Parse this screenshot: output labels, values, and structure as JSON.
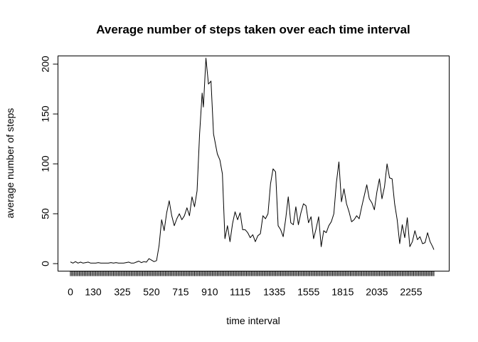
{
  "chart_data": {
    "type": "line",
    "title": "Average number of steps taken over each time interval",
    "xlabel": "time interval",
    "ylabel": "average number of steps",
    "x_tick_labels": [
      "0",
      "130",
      "325",
      "520",
      "715",
      "910",
      "1115",
      "1335",
      "1555",
      "1815",
      "2035",
      "2255"
    ],
    "x_tick_positions": [
      0,
      18,
      41,
      64,
      87,
      110,
      134,
      161,
      188,
      215,
      242,
      269
    ],
    "x_minor_ticks": "every interval index (288 intervals)",
    "xlim": [
      0,
      287
    ],
    "y_ticks": [
      0,
      50,
      100,
      150,
      200
    ],
    "ylim": [
      -8,
      214
    ],
    "grid": false,
    "legend": "none",
    "series": [
      {
        "x": [
          0,
          2,
          4,
          6,
          8,
          10,
          12,
          14,
          16,
          18,
          20,
          22,
          24,
          26,
          28,
          30,
          32,
          34,
          36,
          38,
          40,
          42,
          44,
          46,
          48,
          50,
          52,
          54,
          56,
          58,
          60,
          62,
          64,
          66,
          68,
          70,
          72,
          74,
          76,
          78,
          80,
          82,
          84,
          86,
          88,
          90,
          92,
          94,
          96,
          98,
          100,
          102,
          104,
          105,
          107,
          109,
          111,
          113,
          116,
          118,
          120,
          122,
          124,
          126,
          128,
          130,
          132,
          134,
          136,
          138,
          140,
          142,
          144,
          146,
          148,
          150,
          152,
          154,
          156,
          158,
          160,
          162,
          164,
          166,
          168,
          170,
          172,
          174,
          176,
          178,
          180,
          182,
          184,
          186,
          188,
          190,
          192,
          194,
          196,
          198,
          200,
          202,
          204,
          206,
          208,
          210,
          212,
          214,
          216,
          218,
          220,
          222,
          224,
          226,
          228,
          230,
          232,
          234,
          236,
          238,
          240,
          242,
          244,
          246,
          248,
          250,
          252,
          254,
          256,
          258,
          260,
          262,
          264,
          266,
          268,
          270,
          272,
          274,
          276,
          278,
          280,
          282,
          284,
          286,
          287
        ],
        "values": [
          1.7,
          0.5,
          2,
          0.5,
          1.5,
          0.5,
          1,
          1.5,
          0.5,
          0.5,
          0.5,
          1,
          0.5,
          0.5,
          0.5,
          0.5,
          1,
          0.5,
          1,
          0.5,
          0.5,
          0.5,
          1,
          1.5,
          0.5,
          0.5,
          1.5,
          2.5,
          1,
          2,
          1.5,
          5,
          3.5,
          2,
          3,
          18,
          44,
          33,
          51,
          63,
          48,
          38,
          45,
          50,
          44,
          48,
          56,
          48,
          67,
          57,
          73,
          130,
          171,
          157,
          206,
          180,
          183,
          130,
          110,
          104,
          90,
          25,
          38,
          22,
          40,
          52,
          44,
          51,
          34,
          34,
          31,
          26,
          29,
          22,
          28,
          30,
          48,
          45,
          50,
          80,
          95,
          92,
          38,
          34,
          27,
          45,
          67,
          41,
          39,
          57,
          39,
          51,
          60,
          58,
          41,
          47,
          25,
          35,
          47,
          17,
          33,
          31,
          38,
          42,
          50,
          81,
          102,
          62,
          75,
          60,
          52,
          42,
          44,
          48,
          45,
          57,
          68,
          79,
          65,
          61,
          54,
          72,
          85,
          65,
          77,
          100,
          86,
          85,
          60,
          44,
          20,
          39,
          26,
          46,
          17,
          22,
          33,
          24,
          27,
          20,
          21,
          31,
          22,
          17,
          14
        ]
      }
    ]
  }
}
